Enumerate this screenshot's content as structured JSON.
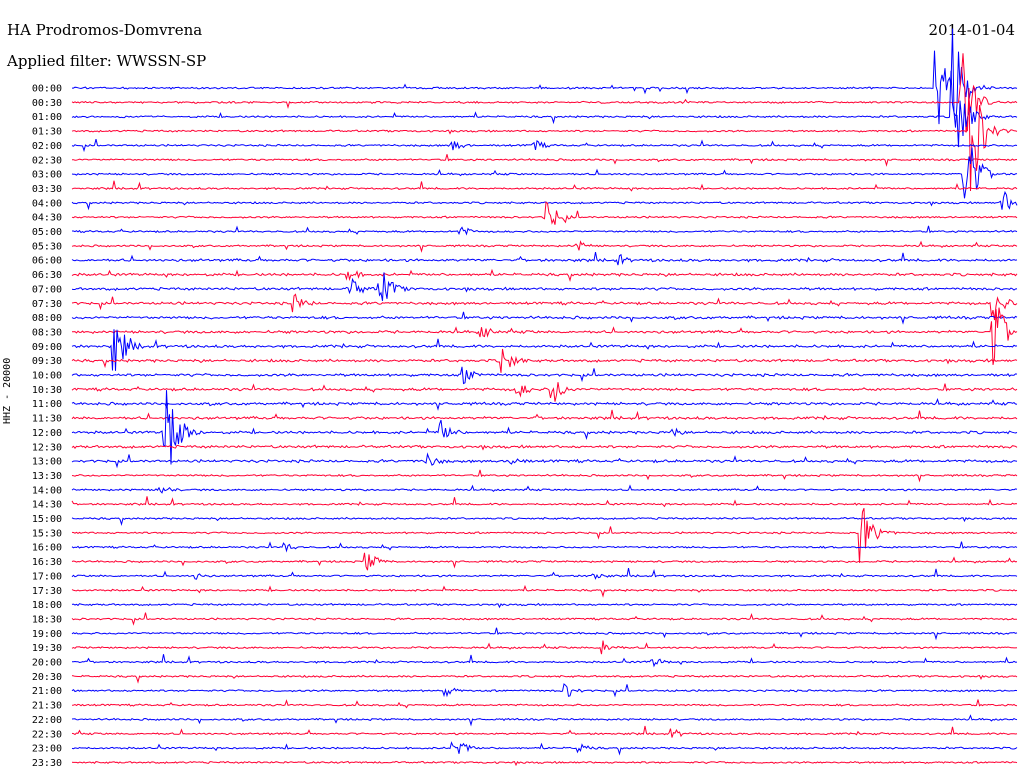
{
  "header": {
    "station": "HA Prodromos-Domvrena",
    "filter": "Applied filter: WWSSN-SP",
    "date": "2014-01-04"
  },
  "channel_label": "HHZ - 20000",
  "colors": {
    "even_trace": "#0000ff",
    "odd_trace": "#ff0033",
    "text": "#000000",
    "background": "#ffffff"
  },
  "chart_data": {
    "type": "line",
    "description_kind": "helicorder",
    "x_axis": "minutes within each 30-minute row",
    "xlim": [
      0,
      30
    ],
    "time_labels": [
      "00:00",
      "00:30",
      "01:00",
      "01:30",
      "02:00",
      "02:30",
      "03:00",
      "03:30",
      "04:00",
      "04:30",
      "05:00",
      "05:30",
      "06:00",
      "06:30",
      "07:00",
      "07:30",
      "08:00",
      "08:30",
      "09:00",
      "09:30",
      "10:00",
      "10:30",
      "11:00",
      "11:30",
      "12:00",
      "12:30",
      "13:00",
      "13:30",
      "14:00",
      "14:30",
      "15:00",
      "15:30",
      "16:00",
      "16:30",
      "17:00",
      "17:30",
      "18:00",
      "18:30",
      "19:00",
      "19:30",
      "20:00",
      "20:30",
      "21:00",
      "21:30",
      "22:00",
      "22:30",
      "23:00",
      "23:30"
    ],
    "events": [
      {
        "row": 0,
        "minute": 27.5,
        "amplitude": 40
      },
      {
        "row": 0,
        "minute": 28.0,
        "amplitude": 60
      },
      {
        "row": 1,
        "minute": 28.3,
        "amplitude": 50
      },
      {
        "row": 2,
        "minute": 28.0,
        "amplitude": 55
      },
      {
        "row": 3,
        "minute": 28.6,
        "amplitude": 60
      },
      {
        "row": 4,
        "minute": 12.1,
        "amplitude": 6
      },
      {
        "row": 4,
        "minute": 14.7,
        "amplitude": 6
      },
      {
        "row": 6,
        "minute": 28.4,
        "amplitude": 50
      },
      {
        "row": 8,
        "minute": 29.6,
        "amplitude": 12
      },
      {
        "row": 9,
        "minute": 15.1,
        "amplitude": 16
      },
      {
        "row": 10,
        "minute": 12.4,
        "amplitude": 5
      },
      {
        "row": 11,
        "minute": 16.1,
        "amplitude": 5
      },
      {
        "row": 12,
        "minute": 17.4,
        "amplitude": 5
      },
      {
        "row": 13,
        "minute": 8.8,
        "amplitude": 7
      },
      {
        "row": 14,
        "minute": 8.9,
        "amplitude": 10
      },
      {
        "row": 14,
        "minute": 9.8,
        "amplitude": 24
      },
      {
        "row": 15,
        "minute": 7.1,
        "amplitude": 10
      },
      {
        "row": 15,
        "minute": 29.3,
        "amplitude": 18
      },
      {
        "row": 17,
        "minute": 13.0,
        "amplitude": 8
      },
      {
        "row": 17,
        "minute": 29.3,
        "amplitude": 40
      },
      {
        "row": 18,
        "minute": 1.4,
        "amplitude": 28
      },
      {
        "row": 19,
        "minute": 13.7,
        "amplitude": 14
      },
      {
        "row": 20,
        "minute": 12.5,
        "amplitude": 9
      },
      {
        "row": 21,
        "minute": 14.2,
        "amplitude": 8
      },
      {
        "row": 21,
        "minute": 15.3,
        "amplitude": 14
      },
      {
        "row": 24,
        "minute": 3.0,
        "amplitude": 58
      },
      {
        "row": 24,
        "minute": 11.7,
        "amplitude": 14
      },
      {
        "row": 24,
        "minute": 19.1,
        "amplitude": 5
      },
      {
        "row": 26,
        "minute": 11.3,
        "amplitude": 9
      },
      {
        "row": 26,
        "minute": 14.0,
        "amplitude": 6
      },
      {
        "row": 28,
        "minute": 2.8,
        "amplitude": 6
      },
      {
        "row": 31,
        "minute": 25.1,
        "amplitude": 30
      },
      {
        "row": 32,
        "minute": 6.8,
        "amplitude": 5
      },
      {
        "row": 33,
        "minute": 9.4,
        "amplitude": 10
      },
      {
        "row": 34,
        "minute": 4.0,
        "amplitude": 4
      },
      {
        "row": 34,
        "minute": 16.6,
        "amplitude": 5
      },
      {
        "row": 39,
        "minute": 16.9,
        "amplitude": 8
      },
      {
        "row": 40,
        "minute": 18.5,
        "amplitude": 5
      },
      {
        "row": 42,
        "minute": 11.9,
        "amplitude": 5
      },
      {
        "row": 42,
        "minute": 15.7,
        "amplitude": 8
      },
      {
        "row": 45,
        "minute": 19.1,
        "amplitude": 5
      },
      {
        "row": 46,
        "minute": 12.1,
        "amplitude": 14
      },
      {
        "row": 46,
        "minute": 16.1,
        "amplitude": 5
      }
    ],
    "grid": false,
    "legend": "none"
  }
}
